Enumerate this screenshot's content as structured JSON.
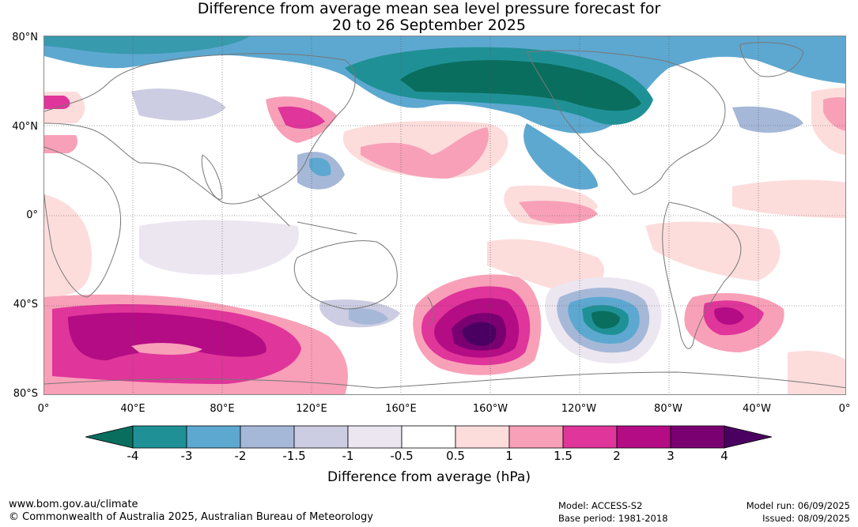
{
  "title": {
    "line1": "Difference from average mean sea level pressure forecast for",
    "line2": "20 to 26 September 2025"
  },
  "latitude_labels": [
    "80°N",
    "40°N",
    "0°",
    "40°S",
    "80°S"
  ],
  "longitude_labels": [
    "0°",
    "40°E",
    "80°E",
    "120°E",
    "160°E",
    "160°W",
    "120°W",
    "80°W",
    "40°W",
    "0°"
  ],
  "colorbar": {
    "title": "Difference from average (hPa)",
    "tick_labels": [
      "-4",
      "-3",
      "-2",
      "-1.5",
      "-1",
      "-0.5",
      "0.5",
      "1",
      "1.5",
      "2",
      "3",
      "4"
    ],
    "colors": [
      "#0a6e5e",
      "#1f9196",
      "#5da8d0",
      "#a6b8d8",
      "#cccce2",
      "#ece6f0",
      "#ffffff",
      "#fddcdc",
      "#f8a0b8",
      "#e0359a",
      "#b40c84",
      "#7a0072",
      "#4a0060"
    ]
  },
  "footer": {
    "website": "www.bom.gov.au/climate",
    "copyright": "© Commonwealth of Australia 2025, Australian Bureau of Meteorology",
    "model": "Model: ACCESS-S2",
    "base_period": "Base period: 1981-2018",
    "model_run": "Model run: 06/09/2025",
    "issued": "Issued: 08/09/2025"
  }
}
